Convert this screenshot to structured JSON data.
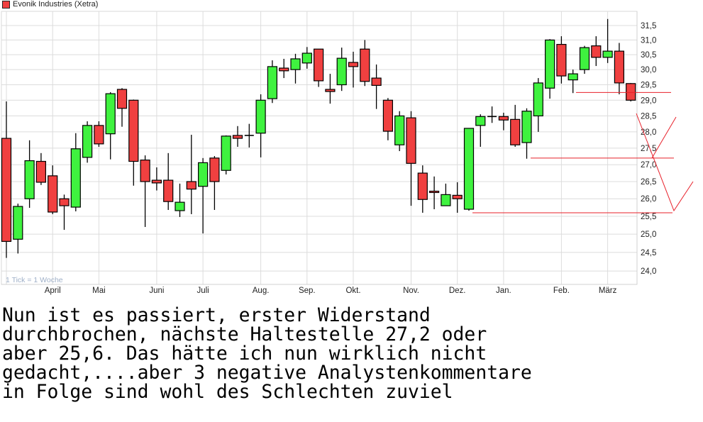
{
  "legend": {
    "label": "Evonik Industries (Xetra)",
    "color": "#f04040"
  },
  "tick_note": "1 Tick = 1 Woche",
  "comment_lines": [
    "Nun ist es passiert, erster Widerstand",
    "durchbrochen, nächste Haltestelle 27,2 oder",
    "aber 25,6. Das hätte ich nun wirklich nicht",
    "gedacht,....aber 3 negative Analystenkommentare",
    "in Folge sind wohl des Schlechten zuviel"
  ],
  "chart_data": {
    "type": "candlestick",
    "title": "Evonik Industries (Xetra)",
    "y_scale": "log",
    "ylim": [
      23.8,
      32.2
    ],
    "y_ticks": [
      {
        "value": 24.0,
        "label": "24,0"
      },
      {
        "value": 24.5,
        "label": "24,5"
      },
      {
        "value": 25.0,
        "label": "25,0"
      },
      {
        "value": 25.5,
        "label": "25,5"
      },
      {
        "value": 26.0,
        "label": "26,0"
      },
      {
        "value": 26.5,
        "label": "26,5"
      },
      {
        "value": 27.0,
        "label": "27,0"
      },
      {
        "value": 27.5,
        "label": "27,5"
      },
      {
        "value": 28.0,
        "label": "28,0"
      },
      {
        "value": 28.5,
        "label": "28,5"
      },
      {
        "value": 29.0,
        "label": "29,0"
      },
      {
        "value": 29.5,
        "label": "29,5"
      },
      {
        "value": 30.0,
        "label": "30,0"
      },
      {
        "value": 30.5,
        "label": "30,5"
      },
      {
        "value": 31.0,
        "label": "31,0"
      },
      {
        "value": 31.5,
        "label": "31,5"
      }
    ],
    "x_ticks": [
      {
        "week": 4,
        "label": "April"
      },
      {
        "week": 8,
        "label": "Mai"
      },
      {
        "week": 13,
        "label": "Juni"
      },
      {
        "week": 17,
        "label": "Juli"
      },
      {
        "week": 22,
        "label": "Aug."
      },
      {
        "week": 26,
        "label": "Sep."
      },
      {
        "week": 30,
        "label": "Okt."
      },
      {
        "week": 35,
        "label": "Nov."
      },
      {
        "week": 39,
        "label": "Dez."
      },
      {
        "week": 43,
        "label": "Jan."
      },
      {
        "week": 48,
        "label": "Feb."
      },
      {
        "week": 52,
        "label": "März"
      }
    ],
    "grid": true,
    "colors": {
      "up": "#3ff23f",
      "down": "#f04040",
      "annotation": "#e8202a"
    },
    "ohlc_columns": [
      "open",
      "high",
      "low",
      "close"
    ],
    "ohlc": [
      [
        27.8,
        28.96,
        24.35,
        24.8
      ],
      [
        24.86,
        25.86,
        24.47,
        25.78
      ],
      [
        26.0,
        27.74,
        25.74,
        27.12
      ],
      [
        27.1,
        27.35,
        26.4,
        26.48
      ],
      [
        26.67,
        26.98,
        25.56,
        25.62
      ],
      [
        26.0,
        26.12,
        25.12,
        25.8
      ],
      [
        25.76,
        27.96,
        25.64,
        27.48
      ],
      [
        27.22,
        28.33,
        27.06,
        28.2
      ],
      [
        28.2,
        28.33,
        27.54,
        27.63
      ],
      [
        27.94,
        29.26,
        27.16,
        29.21
      ],
      [
        29.35,
        29.39,
        28.16,
        28.74
      ],
      [
        29.0,
        29.02,
        26.38,
        27.1
      ],
      [
        27.14,
        27.28,
        25.2,
        26.5
      ],
      [
        26.54,
        26.92,
        26.24,
        26.46
      ],
      [
        26.54,
        27.35,
        25.68,
        25.92
      ],
      [
        25.66,
        26.44,
        25.48,
        25.9
      ],
      [
        26.5,
        27.91,
        25.56,
        26.28
      ],
      [
        26.36,
        27.2,
        25.02,
        27.06
      ],
      [
        27.2,
        27.26,
        25.68,
        26.5
      ],
      [
        26.83,
        27.89,
        26.71,
        27.87
      ],
      [
        27.89,
        28.18,
        27.54,
        27.8
      ],
      [
        27.89,
        28.25,
        27.52,
        27.89
      ],
      [
        27.96,
        29.19,
        27.22,
        29.0
      ],
      [
        29.05,
        30.31,
        28.91,
        30.1
      ],
      [
        30.05,
        30.36,
        29.72,
        29.96
      ],
      [
        30.0,
        30.53,
        29.54,
        30.36
      ],
      [
        30.22,
        30.76,
        30.03,
        30.55
      ],
      [
        30.69,
        30.69,
        29.43,
        29.63
      ],
      [
        29.35,
        29.86,
        28.89,
        29.28
      ],
      [
        29.5,
        30.74,
        29.3,
        30.38
      ],
      [
        30.24,
        30.6,
        29.41,
        30.1
      ],
      [
        30.69,
        31.0,
        29.46,
        29.61
      ],
      [
        29.72,
        30.17,
        28.72,
        29.48
      ],
      [
        29.0,
        29.07,
        27.74,
        28.02
      ],
      [
        27.6,
        28.65,
        27.41,
        28.5
      ],
      [
        28.44,
        28.65,
        25.8,
        27.04
      ],
      [
        26.75,
        26.98,
        25.6,
        25.98
      ],
      [
        26.22,
        26.65,
        25.7,
        26.18
      ],
      [
        25.8,
        26.44,
        25.8,
        26.12
      ],
      [
        26.1,
        26.48,
        25.6,
        26.0
      ],
      [
        25.7,
        28.11,
        25.66,
        28.11
      ],
      [
        28.2,
        28.55,
        27.54,
        28.48
      ],
      [
        28.48,
        28.8,
        28.28,
        28.48
      ],
      [
        28.48,
        28.6,
        28.05,
        28.37
      ],
      [
        28.39,
        28.85,
        27.54,
        27.6
      ],
      [
        27.67,
        28.74,
        27.18,
        28.65
      ],
      [
        28.5,
        29.72,
        28.0,
        29.56
      ],
      [
        29.39,
        31.03,
        29.05,
        31.0
      ],
      [
        30.85,
        31.13,
        29.54,
        29.79
      ],
      [
        29.66,
        30.0,
        29.23,
        29.86
      ],
      [
        30.0,
        30.8,
        29.86,
        30.74
      ],
      [
        30.8,
        31.13,
        30.12,
        30.41
      ],
      [
        30.41,
        31.73,
        30.22,
        30.62
      ],
      [
        30.62,
        30.9,
        29.19,
        29.56
      ],
      [
        29.54,
        29.56,
        28.96,
        29.0
      ]
    ],
    "annotations": {
      "levels": [
        29.25,
        27.2,
        25.6
      ]
    }
  }
}
